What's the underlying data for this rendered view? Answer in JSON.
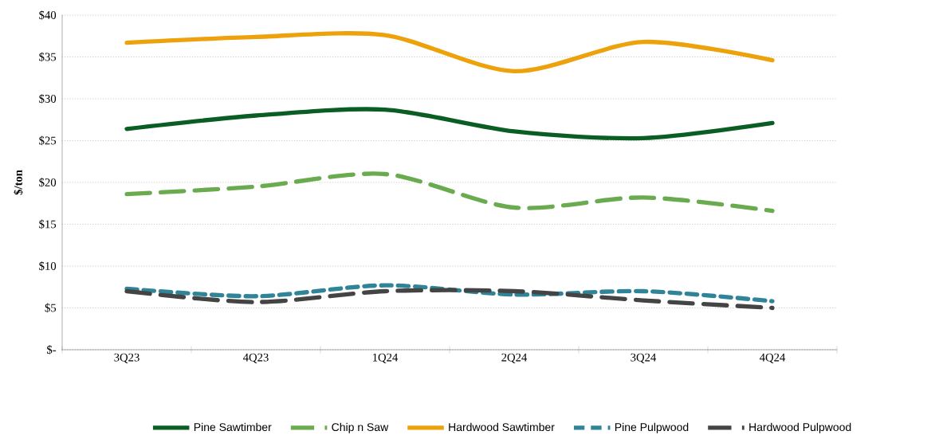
{
  "chart_data": {
    "type": "line",
    "ylabel": "$/ton",
    "categories": [
      "3Q23",
      "4Q23",
      "1Q24",
      "2Q24",
      "3Q24",
      "4Q24"
    ],
    "series": [
      {
        "name": "Pine Sawtimber",
        "color": "#0b5e23",
        "line_style": "solid",
        "values": [
          26.4,
          28.0,
          28.7,
          26.1,
          25.3,
          27.1
        ]
      },
      {
        "name": "Chip n Saw",
        "color": "#6aab4f",
        "line_style": "dashed",
        "values": [
          18.6,
          19.5,
          21.0,
          17.0,
          18.2,
          16.6
        ]
      },
      {
        "name": "Hardwood Sawtimber",
        "color": "#eda20c",
        "line_style": "solid",
        "values": [
          36.7,
          37.4,
          37.6,
          33.3,
          36.8,
          34.6
        ]
      },
      {
        "name": "Pine Pulpwood",
        "color": "#2f8498",
        "line_style": "dashed",
        "values": [
          7.3,
          6.4,
          7.7,
          6.6,
          7.0,
          5.8
        ]
      },
      {
        "name": "Hardwood Pulpwood",
        "color": "#444444",
        "line_style": "dashed",
        "values": [
          7.0,
          5.7,
          7.0,
          7.0,
          5.9,
          5.0
        ]
      }
    ],
    "ylim": [
      0,
      40
    ],
    "yticks": [
      {
        "value": 0,
        "label": "$-"
      },
      {
        "value": 5,
        "label": "$5"
      },
      {
        "value": 10,
        "label": "$10"
      },
      {
        "value": 15,
        "label": "$15"
      },
      {
        "value": 20,
        "label": "$20"
      },
      {
        "value": 25,
        "label": "$25"
      },
      {
        "value": 30,
        "label": "$30"
      },
      {
        "value": 35,
        "label": "$35"
      },
      {
        "value": 40,
        "label": "$40"
      }
    ],
    "grid": "y",
    "legend": "bottom",
    "marker": "none"
  }
}
